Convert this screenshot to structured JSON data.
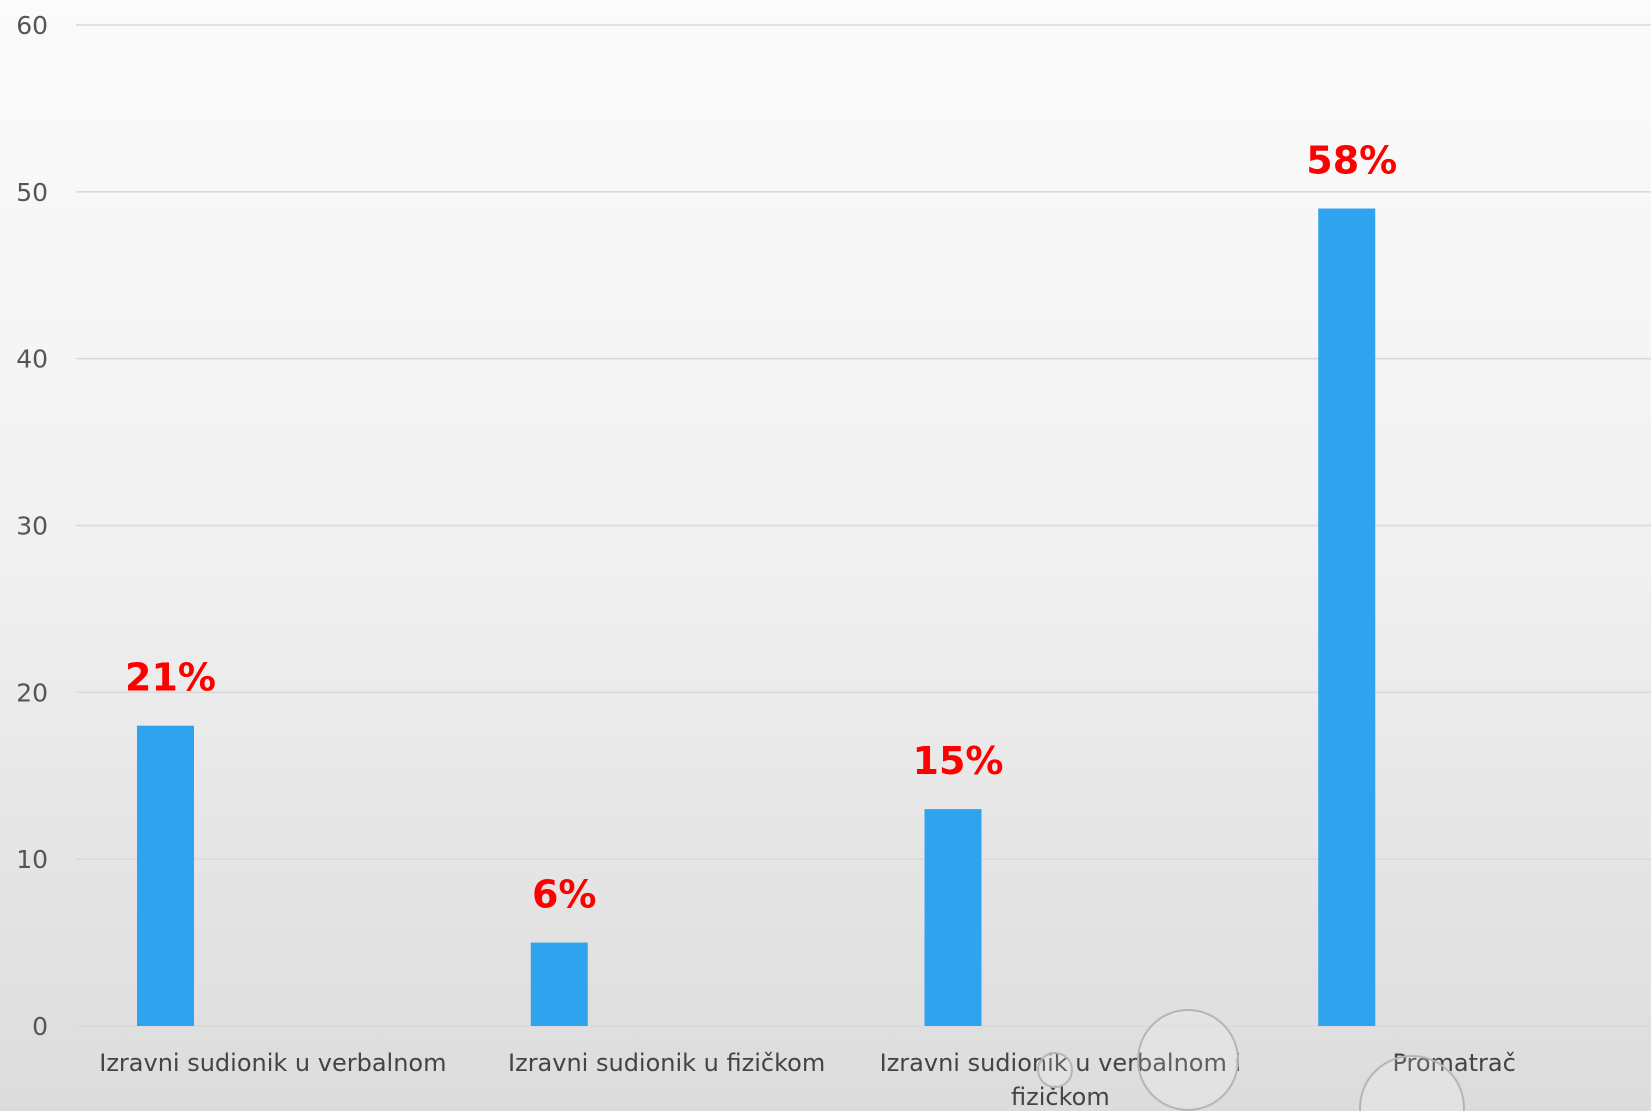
{
  "chart_data": {
    "type": "bar",
    "categories": [
      [
        "Izravni sudionik u verbalnom"
      ],
      [
        "Izravni sudionik u fizičkom"
      ],
      [
        "Izravni sudionik u verbalnom i",
        "fizičkom"
      ],
      [
        "Promatrač"
      ]
    ],
    "values": [
      18,
      5,
      13,
      49
    ],
    "data_labels": [
      "21%",
      "6%",
      "15%",
      "58%"
    ],
    "ylim": [
      0,
      60
    ],
    "yticks": [
      0,
      10,
      20,
      30,
      40,
      50,
      60
    ],
    "grid": true,
    "bar_color": "#2fa3ed",
    "label_color": "#ff0000",
    "title": "",
    "xlabel": "",
    "ylabel": ""
  }
}
